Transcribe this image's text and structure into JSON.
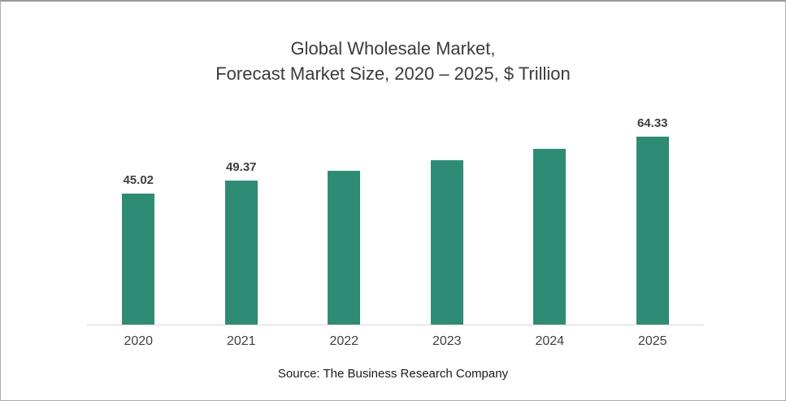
{
  "chart": {
    "title_line1": "Global Wholesale Market,",
    "title_line2": "Forecast Market Size, 2020 – 2025, $ Trillion",
    "source": "Source: The Business Research Company"
  },
  "chart_data": {
    "type": "bar",
    "title": "Global Wholesale Market, Forecast Market Size, 2020 – 2025, $ Trillion",
    "categories": [
      "2020",
      "2021",
      "2022",
      "2023",
      "2024",
      "2025"
    ],
    "values": [
      45.02,
      49.37,
      52.7,
      56.3,
      60.2,
      64.33
    ],
    "data_labels_shown": [
      "45.02",
      "49.37",
      "",
      "",
      "",
      "64.33"
    ],
    "xlabel": "",
    "ylabel": "",
    "ylim": [
      0,
      70
    ],
    "bar_color": "#2E8B74",
    "axis_line_color": "#d6d6d6",
    "grid": false,
    "legend": false,
    "source": "Source: The Business Research Company"
  }
}
